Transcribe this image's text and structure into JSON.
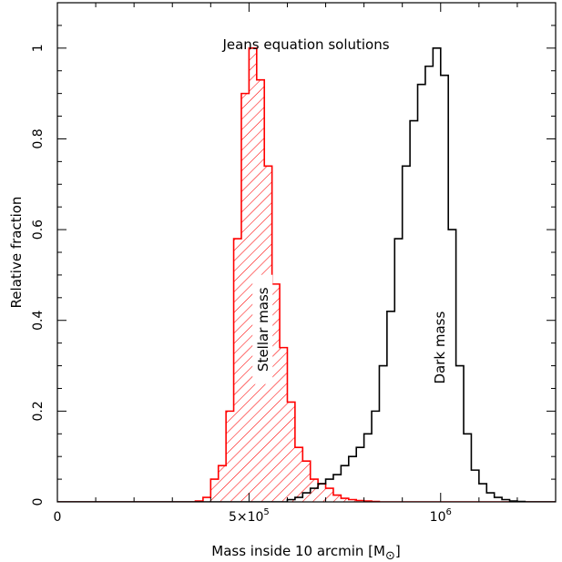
{
  "chart_data": {
    "type": "histogram",
    "title": "Jeans equation solutions",
    "xlabel": "Mass inside 10 arcmin [M",
    "xlabel_symbol": "⊙",
    "xlabel_close": "]",
    "ylabel": "Relative fraction",
    "xlim": [
      0,
      1300000
    ],
    "ylim": [
      0,
      1.1
    ],
    "grid": false,
    "x_ticks": [
      {
        "value": 0,
        "label": "0"
      },
      {
        "value": 500000,
        "label": "5×10",
        "exp": "5"
      },
      {
        "value": 1000000,
        "label": "10",
        "exp": "6"
      }
    ],
    "y_ticks": [
      {
        "value": 0,
        "label": "0"
      },
      {
        "value": 0.2,
        "label": "0.2"
      },
      {
        "value": 0.4,
        "label": "0.4"
      },
      {
        "value": 0.6,
        "label": "0.6"
      },
      {
        "value": 0.8,
        "label": "0.8"
      },
      {
        "value": 1,
        "label": "1"
      }
    ],
    "series": [
      {
        "name": "Stellar mass",
        "color": "#ff0000",
        "hatched": true,
        "bin_edges": [
          0,
          360000,
          380000,
          400000,
          420000,
          440000,
          460000,
          480000,
          500000,
          520000,
          540000,
          560000,
          580000,
          600000,
          620000,
          640000,
          660000,
          680000,
          700000,
          720000,
          740000,
          760000,
          780000,
          800000,
          820000,
          840000,
          1300000
        ],
        "values": [
          0,
          0.002,
          0.01,
          0.05,
          0.08,
          0.2,
          0.58,
          0.9,
          1.0,
          0.93,
          0.74,
          0.48,
          0.34,
          0.22,
          0.12,
          0.09,
          0.05,
          0.04,
          0.03,
          0.015,
          0.008,
          0.005,
          0.003,
          0.002,
          0.001,
          0
        ]
      },
      {
        "name": "Dark mass",
        "color": "#000000",
        "hatched": false,
        "bin_edges": [
          0,
          600000,
          620000,
          640000,
          660000,
          680000,
          700000,
          720000,
          740000,
          760000,
          780000,
          800000,
          820000,
          840000,
          860000,
          880000,
          900000,
          920000,
          940000,
          960000,
          980000,
          1000000,
          1020000,
          1040000,
          1060000,
          1080000,
          1100000,
          1120000,
          1140000,
          1160000,
          1180000,
          1200000,
          1220000,
          1300000
        ],
        "values": [
          0,
          0.005,
          0.01,
          0.02,
          0.03,
          0.04,
          0.05,
          0.06,
          0.08,
          0.1,
          0.12,
          0.15,
          0.2,
          0.3,
          0.42,
          0.58,
          0.74,
          0.84,
          0.92,
          0.96,
          1.0,
          0.94,
          0.6,
          0.3,
          0.15,
          0.07,
          0.04,
          0.02,
          0.01,
          0.005,
          0.002,
          0.001,
          0
        ]
      }
    ],
    "annotations": [
      {
        "text": "Stellar mass",
        "x": 540000,
        "y": 0.38,
        "rotation": -90
      },
      {
        "text": "Dark mass",
        "x": 1000000,
        "y": 0.34,
        "rotation": -90
      }
    ]
  }
}
